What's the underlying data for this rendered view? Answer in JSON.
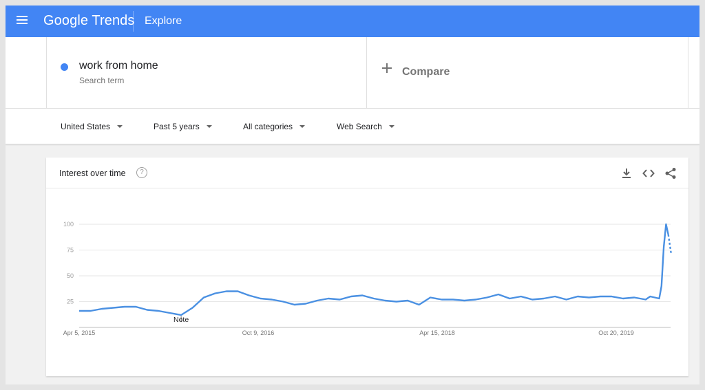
{
  "header": {
    "logo_google": "Google",
    "logo_trends": "Trends",
    "section": "Explore"
  },
  "search": {
    "term": "work from home",
    "term_type": "Search term",
    "term_color": "#4285f4",
    "compare_label": "Compare"
  },
  "filters": [
    {
      "label": "United States"
    },
    {
      "label": "Past 5 years"
    },
    {
      "label": "All categories"
    },
    {
      "label": "Web Search"
    }
  ],
  "card": {
    "title": "Interest over time",
    "icons": [
      "help-icon",
      "download-icon",
      "embed-icon",
      "share-icon"
    ]
  },
  "chart_data": {
    "type": "line",
    "title": "",
    "xlabel": "",
    "ylabel": "",
    "ylim": [
      0,
      100
    ],
    "y_ticks": [
      25,
      50,
      75,
      100
    ],
    "x_ticks": [
      "Apr 5, 2015",
      "Oct 9, 2016",
      "Apr 15, 2018",
      "Oct 20, 2019"
    ],
    "grid": true,
    "annotation": "Note",
    "series": [
      {
        "color": "#4a90e2",
        "x": [
          "2015-04-05",
          "2015-05-10",
          "2015-06-14",
          "2015-07-19",
          "2015-08-23",
          "2015-09-27",
          "2015-11-01",
          "2015-12-06",
          "2016-01-10",
          "2016-02-14",
          "2016-03-20",
          "2016-04-24",
          "2016-05-29",
          "2016-07-03",
          "2016-08-07",
          "2016-09-11",
          "2016-10-16",
          "2016-11-20",
          "2016-12-25",
          "2017-01-29",
          "2017-03-05",
          "2017-04-09",
          "2017-05-14",
          "2017-06-18",
          "2017-07-23",
          "2017-08-27",
          "2017-10-01",
          "2017-11-05",
          "2017-12-10",
          "2018-01-14",
          "2018-02-18",
          "2018-03-25",
          "2018-04-29",
          "2018-06-03",
          "2018-07-08",
          "2018-08-12",
          "2018-09-16",
          "2018-10-21",
          "2018-11-25",
          "2018-12-30",
          "2019-02-03",
          "2019-03-10",
          "2019-04-14",
          "2019-05-19",
          "2019-06-23",
          "2019-07-28",
          "2019-09-01",
          "2019-10-06",
          "2019-11-10",
          "2019-12-15",
          "2020-01-19",
          "2020-02-02",
          "2020-02-16",
          "2020-03-01",
          "2020-03-08",
          "2020-03-15",
          "2020-03-22",
          "2020-03-29"
        ],
        "values": [
          16,
          16,
          18,
          19,
          20,
          20,
          17,
          16,
          14,
          12,
          19,
          29,
          33,
          35,
          35,
          31,
          28,
          27,
          25,
          22,
          23,
          26,
          28,
          27,
          30,
          31,
          28,
          26,
          25,
          26,
          22,
          29,
          27,
          27,
          26,
          27,
          29,
          32,
          28,
          30,
          27,
          28,
          30,
          27,
          30,
          29,
          30,
          30,
          28,
          29,
          27,
          30,
          29,
          28,
          40,
          78,
          100,
          90
        ]
      }
    ],
    "partial_tail_values": [
      90,
      72
    ]
  }
}
